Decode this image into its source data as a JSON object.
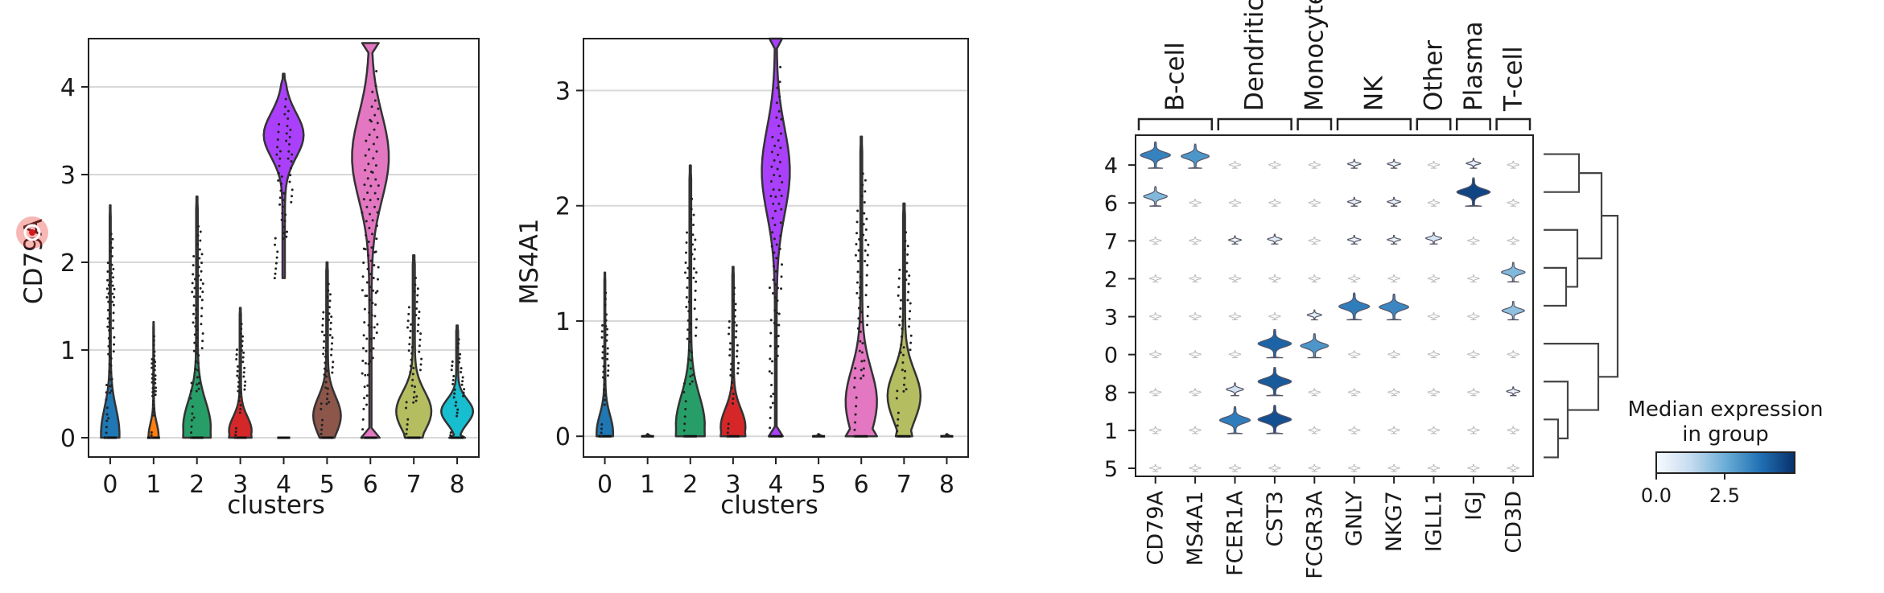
{
  "chart_data": [
    {
      "type": "violin",
      "ylabel": "CD79A",
      "xlabel": "clusters",
      "categories": [
        "0",
        "1",
        "2",
        "3",
        "4",
        "5",
        "6",
        "7",
        "8"
      ],
      "yticks": [
        0,
        1,
        2,
        3,
        4
      ],
      "ylim": [
        -0.22,
        4.55
      ],
      "grid": "horizontal",
      "series": [
        {
          "cat": "0",
          "max": 2.65,
          "color": "#1f77b4",
          "peak": 0.22,
          "peak_at": 0.05
        },
        {
          "cat": "1",
          "max": 1.32,
          "color": "#ff7f0e",
          "peak": 0.12,
          "peak_at": 0.02
        },
        {
          "cat": "2",
          "max": 2.75,
          "color": "#279e68",
          "peak": 0.33,
          "peak_at": 0.12
        },
        {
          "cat": "3",
          "max": 1.48,
          "color": "#d62728",
          "peak": 0.27,
          "peak_at": 0.08
        },
        {
          "cat": "4",
          "min": 1.82,
          "max": 4.15,
          "color": "#aa40fc",
          "peak": 0.48,
          "peak_at": 3.45
        },
        {
          "cat": "5",
          "max": 2.0,
          "color": "#8c564b",
          "peak": 0.33,
          "peak_at": 0.25
        },
        {
          "cat": "6",
          "max": 4.5,
          "color": "#e377c2",
          "peak": 0.44,
          "peak_at": 3.2,
          "wide_top": true
        },
        {
          "cat": "7",
          "max": 2.08,
          "color": "#b5bd61",
          "peak": 0.42,
          "peak_at": 0.3
        },
        {
          "cat": "8",
          "max": 1.28,
          "color": "#17becf",
          "peak": 0.38,
          "peak_at": 0.3
        }
      ]
    },
    {
      "type": "violin",
      "ylabel": "MS4A1",
      "xlabel": "clusters",
      "categories": [
        "0",
        "1",
        "2",
        "3",
        "4",
        "5",
        "6",
        "7",
        "8"
      ],
      "yticks": [
        0,
        1,
        2,
        3
      ],
      "ylim": [
        -0.18,
        3.45
      ],
      "grid": "horizontal",
      "series": [
        {
          "cat": "0",
          "max": 1.42,
          "color": "#1f77b4",
          "peak": 0.2,
          "peak_at": 0.03
        },
        {
          "cat": "1",
          "max": 0.02,
          "color": "#ff7f0e",
          "peak": 0.12,
          "peak_at": 0.0
        },
        {
          "cat": "2",
          "max": 2.35,
          "color": "#279e68",
          "peak": 0.35,
          "peak_at": 0.1
        },
        {
          "cat": "3",
          "max": 1.47,
          "color": "#d62728",
          "peak": 0.3,
          "peak_at": 0.08
        },
        {
          "cat": "4",
          "max": 3.45,
          "color": "#aa40fc",
          "peak": 0.34,
          "peak_at": 2.3,
          "wide_top": true
        },
        {
          "cat": "5",
          "max": 0.02,
          "color": "#8c564b",
          "peak": 0.12,
          "peak_at": 0.0
        },
        {
          "cat": "6",
          "max": 2.6,
          "color": "#e377c2",
          "peak": 0.38,
          "peak_at": 0.3
        },
        {
          "cat": "7",
          "max": 2.02,
          "color": "#b5bd61",
          "peak": 0.4,
          "peak_at": 0.35
        },
        {
          "cat": "8",
          "max": 0.02,
          "color": "#17becf",
          "peak": 0.12,
          "peak_at": 0.0
        }
      ]
    },
    {
      "type": "stacked_violin",
      "rows": [
        "4",
        "6",
        "7",
        "2",
        "3",
        "0",
        "8",
        "1",
        "5"
      ],
      "genes": [
        "CD79A",
        "MS4A1",
        "FCER1A",
        "CST3",
        "FCGR3A",
        "GNLY",
        "NKG7",
        "IGLL1",
        "IGJ",
        "CD3D"
      ],
      "groups": [
        {
          "label": "B-cell",
          "start": 0,
          "end": 1
        },
        {
          "label": "Dendritic",
          "start": 2,
          "end": 3
        },
        {
          "label": "Monocyte",
          "start": 4,
          "end": 4
        },
        {
          "label": "NK",
          "start": 5,
          "end": 6
        },
        {
          "label": "Other",
          "start": 7,
          "end": 7
        },
        {
          "label": "Plasma",
          "start": 8,
          "end": 8
        },
        {
          "label": "T-cell",
          "start": 9,
          "end": 9
        }
      ],
      "median_expression": [
        [
          3.4,
          3.0,
          0,
          0,
          0,
          0.3,
          0.3,
          0,
          0.5,
          0
        ],
        [
          2.2,
          0,
          0,
          0,
          0,
          0.3,
          0.3,
          0,
          4.6,
          0
        ],
        [
          0,
          0,
          0.2,
          0.5,
          0,
          0.3,
          0.3,
          0.8,
          0,
          0
        ],
        [
          0,
          0,
          0,
          0,
          0,
          0,
          0,
          0,
          0,
          2.2
        ],
        [
          0,
          0,
          0,
          0,
          0.5,
          3.5,
          3.3,
          0,
          0,
          2.0
        ],
        [
          0,
          0,
          0,
          4.0,
          3.0,
          0,
          0,
          0,
          0,
          0
        ],
        [
          0,
          0,
          1.0,
          4.2,
          0,
          0,
          0,
          0,
          0,
          0.3
        ],
        [
          0,
          0,
          3.5,
          4.4,
          0,
          0,
          0,
          0,
          0,
          0
        ],
        [
          0,
          0,
          0,
          0,
          0,
          0,
          0,
          0,
          0,
          0
        ]
      ],
      "colorbar": {
        "title": "Median expression\nin group",
        "ticks": [
          "0.0",
          "2.5"
        ],
        "range": [
          0,
          5
        ]
      }
    }
  ],
  "labels": {
    "p1_ylabel": "CD79A",
    "p1_xlabel": "clusters",
    "p2_ylabel": "MS4A1",
    "p2_xlabel": "clusters",
    "cbar_title_1": "Median expression",
    "cbar_title_2": "in group",
    "cbar_tick_0": "0.0",
    "cbar_tick_1": "2.5"
  }
}
